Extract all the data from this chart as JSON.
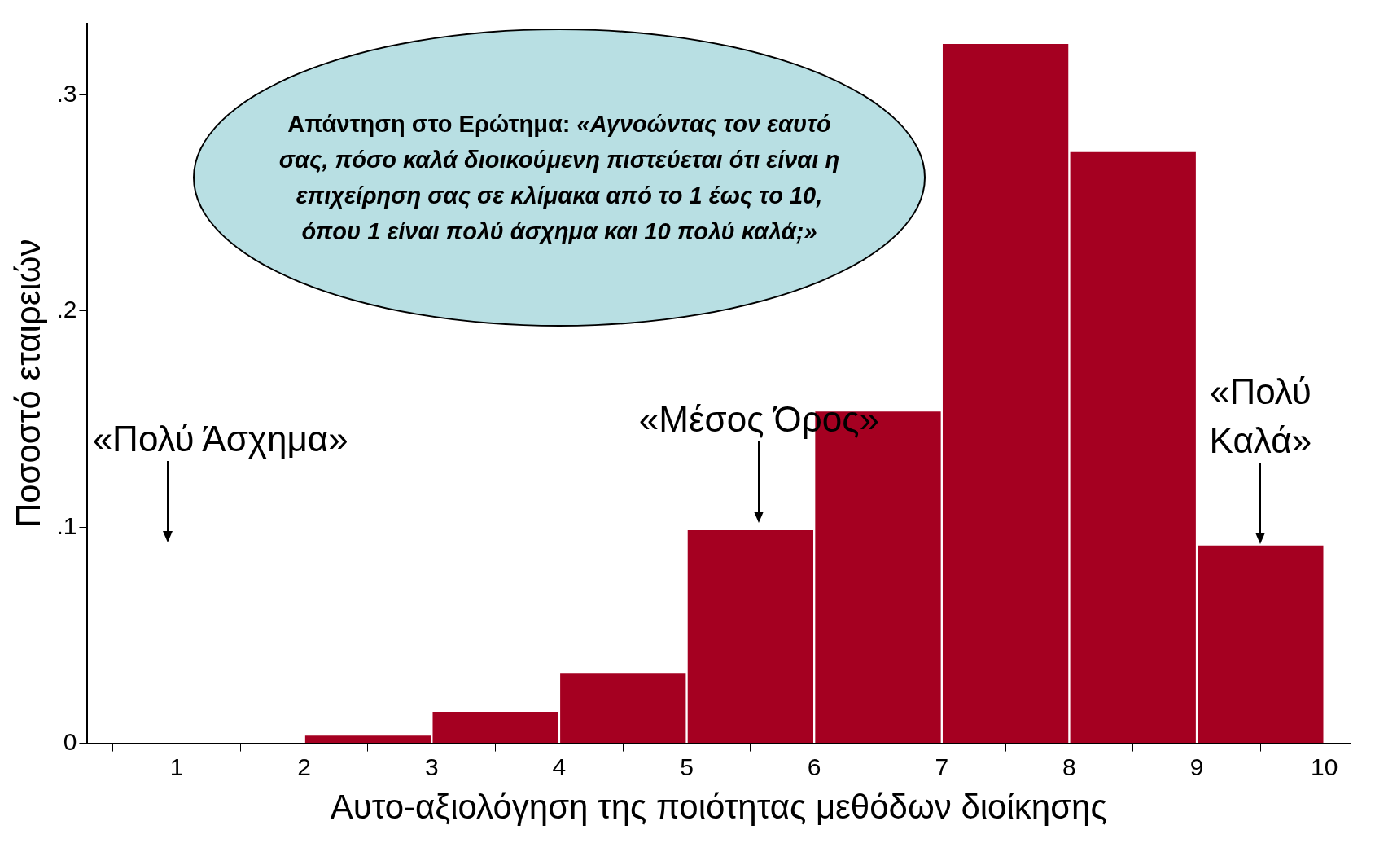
{
  "chart_data": {
    "type": "histogram",
    "xlabel": "Αυτο-αξιολόγηση της ποιότητας μεθόδων διοίκησης",
    "ylabel": "Ποσοστό εταιρειών",
    "bins": [
      1,
      2,
      3,
      4,
      5,
      6,
      7,
      8,
      9,
      10
    ],
    "values": [
      0,
      0.004,
      0.015,
      0.033,
      0.099,
      0.154,
      0.324,
      0.274,
      0.092
    ],
    "color": "#a50021",
    "xlim": [
      0.3,
      10.2
    ],
    "xticks": [
      1,
      2,
      3,
      4,
      5,
      6,
      7,
      8,
      9,
      10
    ],
    "ylim": [
      0,
      0.333
    ],
    "yticks": [
      {
        "value": 0,
        "label": "0"
      },
      {
        "value": 0.1,
        "label": ".1"
      },
      {
        "value": 0.2,
        "label": ".2"
      },
      {
        "value": 0.3,
        "label": ".3"
      }
    ],
    "grid": false,
    "legend": false,
    "annotations": [
      "Απάντηση στο Ερώτημα: ",
      "«Αγνοώντας τον εαυτό σας, πόσο καλά διοικούμενη πιστεύεται ότι είναι η επιχείρηση σας σε κλίμακα από το 1 έως το 10, όπου 1 είναι πολύ άσχημα και 10 πολύ καλά;»",
      "«Πολύ Άσχημα»",
      "«Μέσος Όρος»",
      {
        "text": "«Πολύ Καλά»",
        "x": 9.5,
        "y": 0.092
      }
    ]
  }
}
